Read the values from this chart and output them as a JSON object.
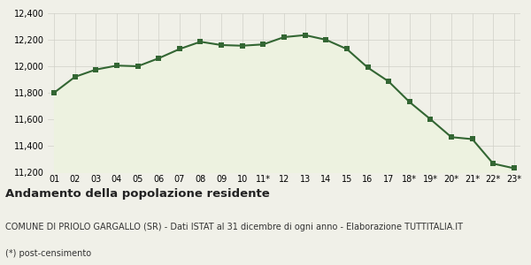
{
  "x_labels": [
    "01",
    "02",
    "03",
    "04",
    "05",
    "06",
    "07",
    "08",
    "09",
    "10",
    "11*",
    "12",
    "13",
    "14",
    "15",
    "16",
    "17",
    "18*",
    "19*",
    "20*",
    "21*",
    "22*",
    "23*"
  ],
  "y_values": [
    11800,
    11920,
    11975,
    12005,
    12000,
    12060,
    12130,
    12185,
    12160,
    12155,
    12165,
    12220,
    12235,
    12200,
    12130,
    11990,
    11885,
    11730,
    11600,
    11465,
    11450,
    11265,
    11230
  ],
  "line_color": "#336633",
  "fill_color": "#edf2e0",
  "marker_color": "#336633",
  "bg_color": "#f0f0e8",
  "plot_bg_color": "#f0f0e8",
  "grid_color": "#d0d0c8",
  "ylim": [
    11200,
    12400
  ],
  "yticks": [
    11200,
    11400,
    11600,
    11800,
    12000,
    12200,
    12400
  ],
  "title": "Andamento della popolazione residente",
  "subtitle": "COMUNE DI PRIOLO GARGALLO (SR) - Dati ISTAT al 31 dicembre di ogni anno - Elaborazione TUTTITALIA.IT",
  "footnote": "(*) post-censimento",
  "title_fontsize": 9.5,
  "subtitle_fontsize": 7,
  "footnote_fontsize": 7,
  "tick_fontsize": 7,
  "marker_size": 20
}
